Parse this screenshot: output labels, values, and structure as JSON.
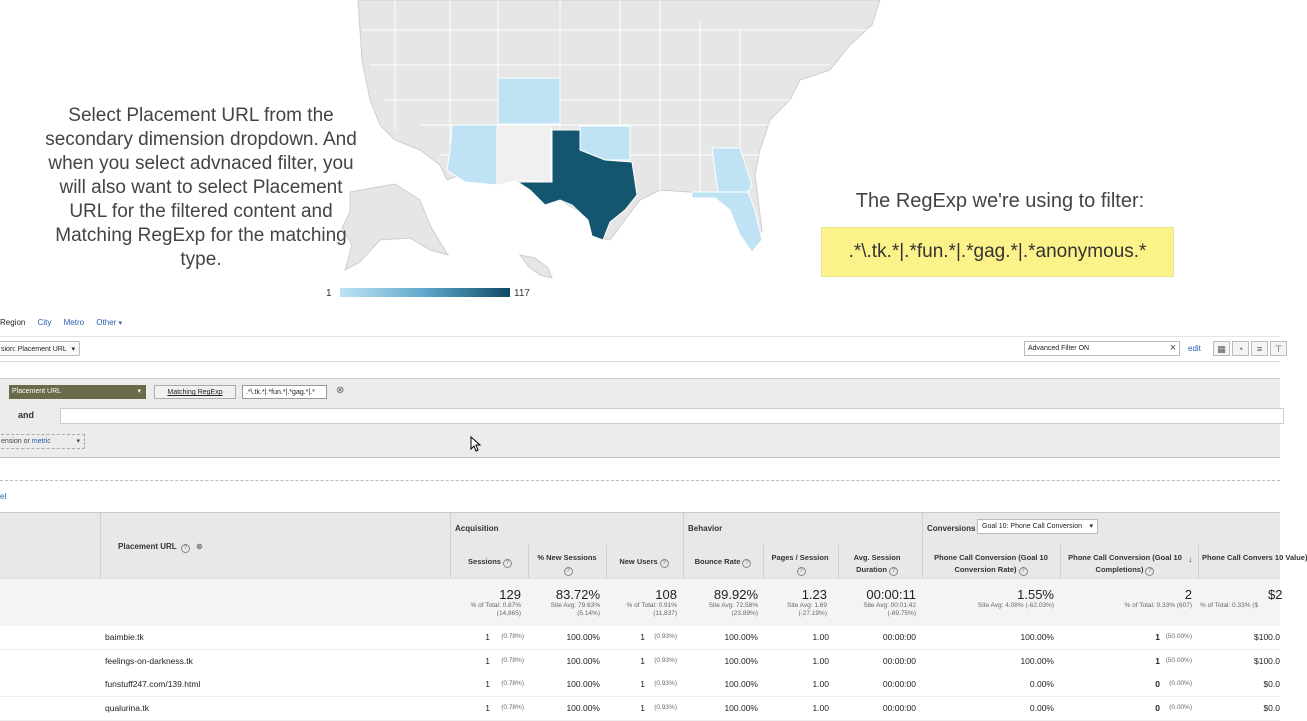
{
  "slide": {
    "instruction": "Select Placement URL from the secondary dimension dropdown. And when you select advnaced filter, you will also want to select Placement URL for the filtered content and Matching RegExp for the matching type.",
    "regexp_title": "The RegExp we're using to filter:",
    "regexp_value": ".*\\.tk.*|.*fun.*|.*gag.*|.*anonymous.*"
  },
  "map": {
    "legend_min": "1",
    "legend_max": "117",
    "colors": {
      "light": "#bfe3f4",
      "mid": "#9fd0ea",
      "dark": "#145670",
      "land": "#e6e6e6",
      "border": "#ffffff"
    }
  },
  "dimension_tabs": [
    "Region",
    "City",
    "Metro",
    "Other"
  ],
  "secondary_dimension": "sion: Placement URL",
  "advanced_filter": {
    "value": "Advanced Filter ON",
    "edit": "edit"
  },
  "filter": {
    "dimension": "Placement URL",
    "match_type": "Matching RegExp",
    "expression": ".*\\.tk.*|.*fun.*|.*gag.*|.*",
    "and_label": "and",
    "add_dimension_prefix": "ension or ",
    "add_dimension_metric": "metric"
  },
  "misc_link": "el",
  "table": {
    "placement_header": "Placement URL",
    "groups": {
      "acquisition": "Acquisition",
      "behavior": "Behavior",
      "conversions": "Conversions"
    },
    "goal_select": "Goal 10: Phone Call Conversion",
    "columns": {
      "sessions": "Sessions",
      "new_sessions": "% New Sessions",
      "new_users": "New Users",
      "bounce": "Bounce Rate",
      "pages": "Pages / Session",
      "duration": "Avg. Session Duration",
      "conv_rate": "Phone Call Conversion (Goal 10 Conversion Rate)",
      "completions": "Phone Call Conversion (Goal 10 Completions)",
      "value": "Phone Call Convers 10 Value)"
    },
    "totals": {
      "sessions": "129",
      "sessions_sub": "% of Total: 0.87% (14,865)",
      "new_sessions": "83.72%",
      "new_sessions_sub": "Site Avg: 79.63% (5.14%)",
      "new_users": "108",
      "new_users_sub": "% of Total: 0.91% (11,837)",
      "bounce": "89.92%",
      "bounce_sub": "Site Avg: 72.58% (23.89%)",
      "pages": "1.23",
      "pages_sub": "Site Avg: 1.69 (-27.19%)",
      "duration": "00:00:11",
      "duration_sub": "Site Avg: 00:01:42 (-89.75%)",
      "conv_rate": "1.55%",
      "conv_rate_sub": "Site Avg: 4.08% (-62.03%)",
      "completions": "2",
      "completions_sub": "% of Total: 0.33% (607)",
      "value": "$2",
      "value_sub": "% of Total: 0.33% ($"
    },
    "rows": [
      {
        "url": "baimbie.tk",
        "sessions": "1",
        "sessions_pct": "(0.78%)",
        "new_sessions": "100.00%",
        "new_users": "1",
        "new_users_pct": "(0.93%)",
        "bounce": "100.00%",
        "pages": "1.00",
        "duration": "00:00:00",
        "conv_rate": "100.00%",
        "completions": "1",
        "completions_pct": "(50.00%)",
        "value": "$100.0"
      },
      {
        "url": "feelings-on-darkness.tk",
        "sessions": "1",
        "sessions_pct": "(0.78%)",
        "new_sessions": "100.00%",
        "new_users": "1",
        "new_users_pct": "(0.93%)",
        "bounce": "100.00%",
        "pages": "1.00",
        "duration": "00:00:00",
        "conv_rate": "100.00%",
        "completions": "1",
        "completions_pct": "(50.00%)",
        "value": "$100.0"
      },
      {
        "url": "funstuff247.com/139.html",
        "sessions": "1",
        "sessions_pct": "(0.78%)",
        "new_sessions": "100.00%",
        "new_users": "1",
        "new_users_pct": "(0.93%)",
        "bounce": "100.00%",
        "pages": "1.00",
        "duration": "00:00:00",
        "conv_rate": "0.00%",
        "completions": "0",
        "completions_pct": "(0.00%)",
        "value": "$0.0"
      },
      {
        "url": "qualurina.tk",
        "sessions": "1",
        "sessions_pct": "(0.78%)",
        "new_sessions": "100.00%",
        "new_users": "1",
        "new_users_pct": "(0.93%)",
        "bounce": "100.00%",
        "pages": "1.00",
        "duration": "00:00:00",
        "conv_rate": "0.00%",
        "completions": "0",
        "completions_pct": "(0.00%)",
        "value": "$0.0"
      }
    ]
  }
}
